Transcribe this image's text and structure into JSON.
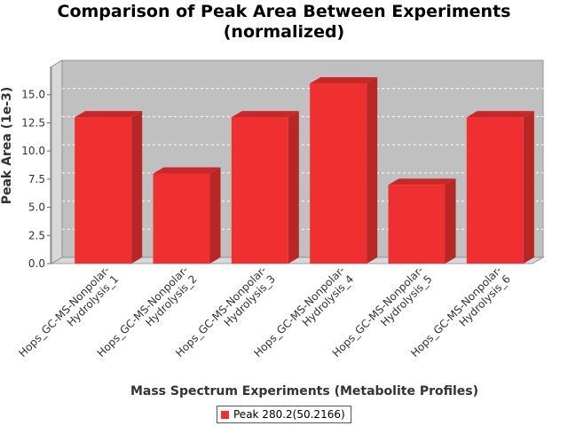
{
  "chart_data": {
    "type": "bar",
    "title": "Comparison of Peak Area Between Experiments",
    "subtitle": "(normalized)",
    "xlabel": "Mass Spectrum Experiments (Metabolite Profiles)",
    "ylabel": "Peak Area (1e-3)",
    "categories": [
      "Hops_GC-MS-Nonpolar-Hydrolysis_1",
      "Hops_GC-MS-Nonpolar-Hydrolysis_2",
      "Hops_GC-MS-Nonpolar-Hydrolysis_3",
      "Hops_GC-MS-Nonpolar-Hydrolysis_4",
      "Hops_GC-MS-Nonpolar-Hydrolysis_5",
      "Hops_GC-MS-Nonpolar-Hydrolysis_6"
    ],
    "category_lines": [
      [
        "Hops_GC-MS-Nonpolar-",
        "Hydrolysis_1"
      ],
      [
        "Hops_GC-MS-Nonpolar-",
        "Hydrolysis_2"
      ],
      [
        "Hops_GC-MS-Nonpolar-",
        "Hydrolysis_3"
      ],
      [
        "Hops_GC-MS-Nonpolar-",
        "Hydrolysis_4"
      ],
      [
        "Hops_GC-MS-Nonpolar-",
        "Hydrolysis_5"
      ],
      [
        "Hops_GC-MS-Nonpolar-",
        "Hydrolysis_6"
      ]
    ],
    "series": [
      {
        "name": "Peak 280.2(50.2166)",
        "values": [
          13.0,
          8.0,
          13.0,
          16.0,
          7.0,
          13.0
        ]
      }
    ],
    "yticks": [
      "0.0",
      "2.5",
      "5.0",
      "7.5",
      "10.0",
      "12.5",
      "15.0"
    ],
    "ylim": [
      0,
      17.5
    ],
    "grid": true,
    "legend_position": "bottom",
    "colors": {
      "bar_front": "#f03030",
      "bar_top": "#c82828",
      "bar_side": "#b82626",
      "plot_background": "#c0c0c0",
      "plot_wall": "#d8d8d8",
      "gridline": "#ffffff"
    }
  }
}
